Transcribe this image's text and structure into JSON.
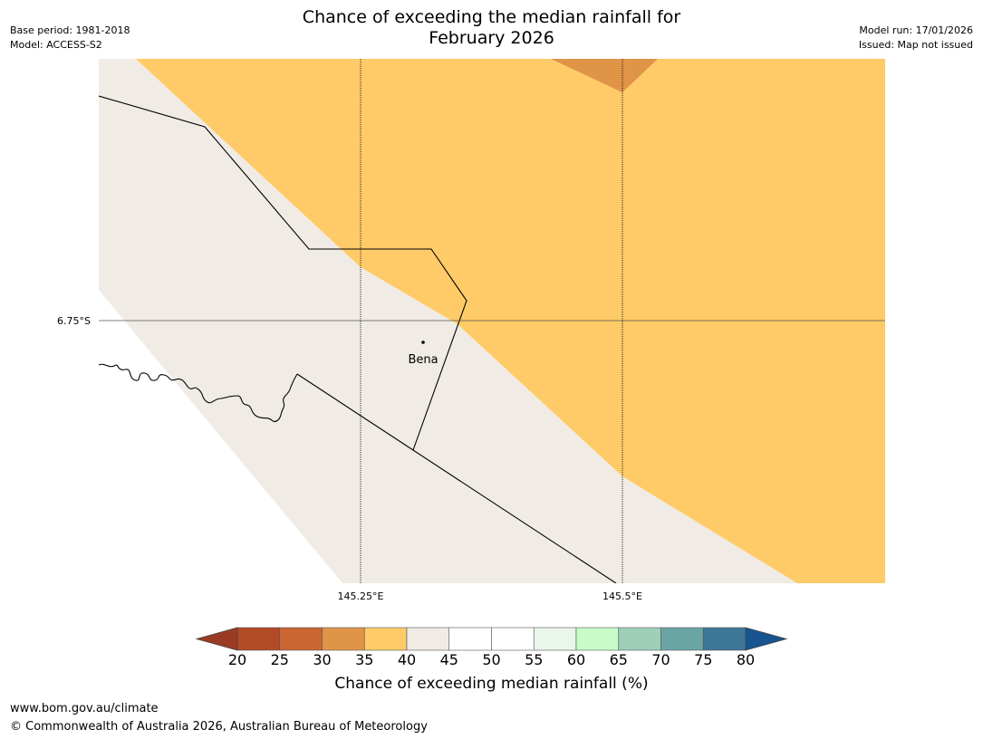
{
  "title": {
    "line1": "Chance of exceeding the median rainfall for",
    "line2": "February 2026"
  },
  "meta_left": {
    "base_period": "Base period: 1981-2018",
    "model": "Model: ACCESS-S2"
  },
  "meta_right": {
    "model_run": "Model run: 17/01/2026",
    "issued": "Issued: Map not issued"
  },
  "map": {
    "lat_label": "6.75°S",
    "lon_labels": [
      "145.25°E",
      "145.5°E"
    ],
    "place_name": "Bena"
  },
  "colorbar": {
    "ticks": [
      "20",
      "25",
      "30",
      "35",
      "40",
      "45",
      "50",
      "55",
      "60",
      "65",
      "70",
      "75",
      "80"
    ],
    "colors": [
      "#9c3b24",
      "#b34a26",
      "#cc6633",
      "#e09448",
      "#fecb68",
      "#f0ebe5",
      "#ffffff",
      "#ffffff",
      "#eaf6ea",
      "#c8fbc8",
      "#9dcfb9",
      "#6aa5a5",
      "#3e7698",
      "#175490"
    ],
    "label": "Chance of exceeding median rainfall (%)"
  },
  "footer": {
    "url": "www.bom.gov.au/climate",
    "copyright": "© Commonwealth of Australia 2026, Australian Bureau of Meteorology"
  }
}
